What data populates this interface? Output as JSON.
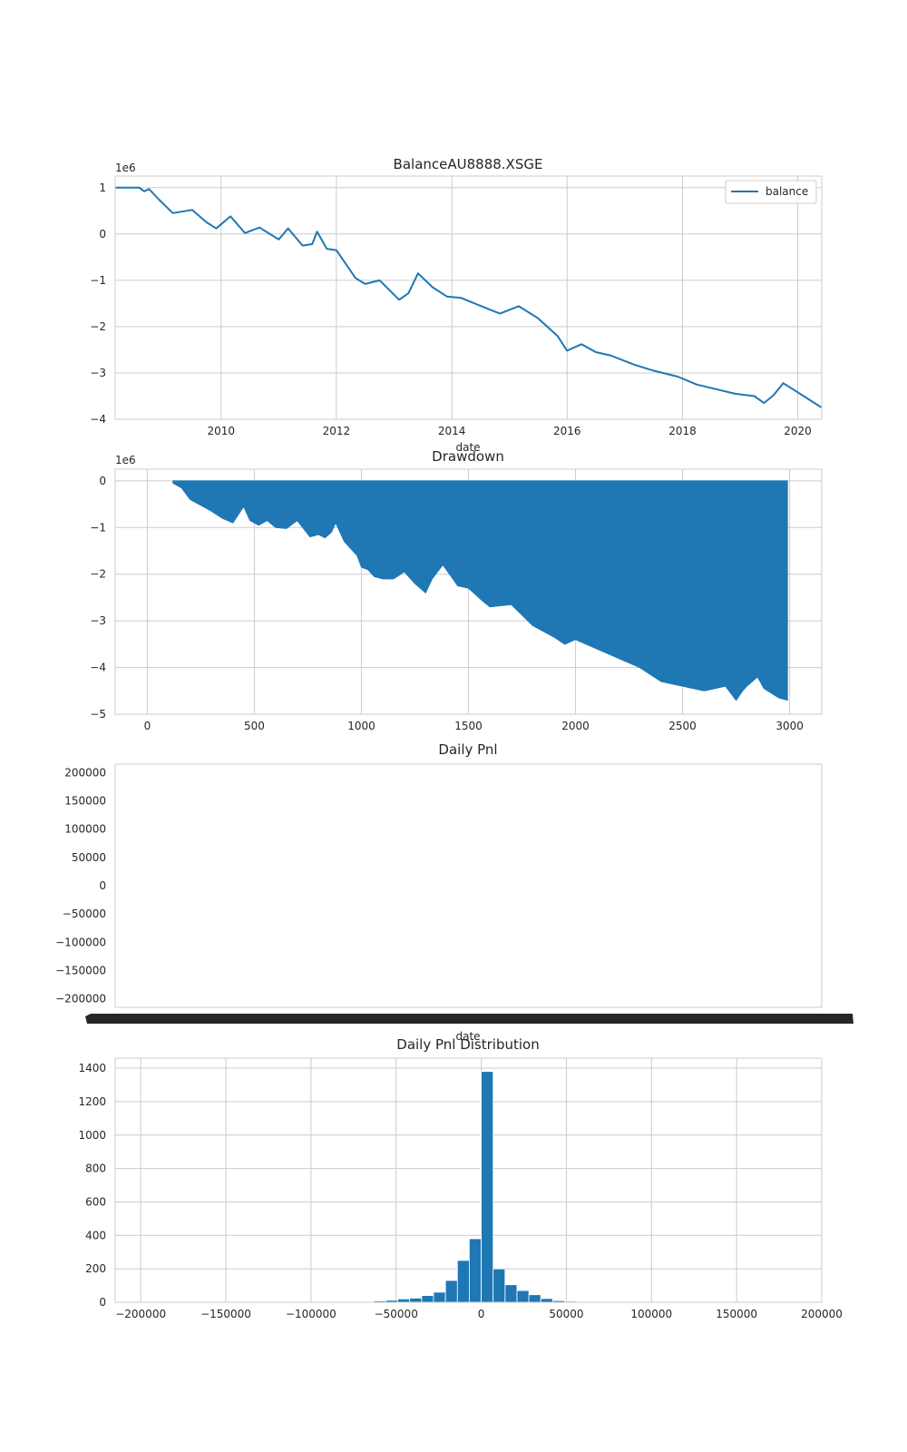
{
  "chart_data": [
    {
      "type": "line",
      "title": "BalanceAU8888.XSGE",
      "xlabel": "date",
      "ylabel": "",
      "y_offset_label": "1e6",
      "xlim": [
        "2008-03-01",
        "2020-06-01"
      ],
      "ylim": [
        -4,
        1.25
      ],
      "x_ticks": [
        "2010",
        "2012",
        "2014",
        "2016",
        "2018",
        "2020"
      ],
      "y_ticks": [
        -4,
        -3,
        -2,
        -1,
        0,
        1
      ],
      "y_tick_labels": [
        "−4",
        "−3",
        "−2",
        "−1",
        "0",
        "1"
      ],
      "grid": true,
      "legend": {
        "position": "top-right",
        "entries": [
          "balance"
        ]
      },
      "series": [
        {
          "name": "balance",
          "color": "#1f77b4",
          "x": [
            "2008-03-01",
            "2008-08-01",
            "2008-09-01",
            "2008-10-01",
            "2008-12-01",
            "2009-03-01",
            "2009-07-01",
            "2009-10-01",
            "2009-12-01",
            "2010-03-01",
            "2010-06-01",
            "2010-09-01",
            "2011-01-01",
            "2011-03-01",
            "2011-06-01",
            "2011-08-01",
            "2011-09-01",
            "2011-11-01",
            "2012-01-01",
            "2012-05-01",
            "2012-07-01",
            "2012-10-01",
            "2013-02-01",
            "2013-04-01",
            "2013-06-01",
            "2013-09-01",
            "2013-12-01",
            "2014-03-01",
            "2014-07-01",
            "2014-11-01",
            "2015-03-01",
            "2015-07-01",
            "2015-11-01",
            "2016-01-01",
            "2016-04-01",
            "2016-07-01",
            "2016-10-01",
            "2017-03-01",
            "2017-07-01",
            "2017-12-01",
            "2018-04-01",
            "2018-08-01",
            "2018-12-01",
            "2019-04-01",
            "2019-06-01",
            "2019-08-01",
            "2019-10-01",
            "2019-12-01",
            "2020-03-01",
            "2020-06-01"
          ],
          "values": [
            1.0,
            1.0,
            0.92,
            0.97,
            0.75,
            0.45,
            0.52,
            0.25,
            0.12,
            0.38,
            0.02,
            0.14,
            -0.12,
            0.12,
            -0.25,
            -0.22,
            0.05,
            -0.32,
            -0.35,
            -0.95,
            -1.08,
            -1.0,
            -1.42,
            -1.28,
            -0.85,
            -1.15,
            -1.35,
            -1.38,
            -1.55,
            -1.72,
            -1.56,
            -1.82,
            -2.2,
            -2.52,
            -2.38,
            -2.55,
            -2.62,
            -2.82,
            -2.95,
            -3.08,
            -3.25,
            -3.35,
            -3.45,
            -3.5,
            -3.65,
            -3.48,
            -3.22,
            -3.35,
            -3.55,
            -3.75
          ]
        }
      ]
    },
    {
      "type": "area",
      "title": "Drawdown",
      "xlabel": "",
      "ylabel": "",
      "y_offset_label": "1e6",
      "xlim": [
        -150,
        3150
      ],
      "ylim": [
        -5,
        0.25
      ],
      "x_ticks": [
        0,
        500,
        1000,
        1500,
        2000,
        2500,
        3000
      ],
      "y_ticks": [
        -5,
        -4,
        -3,
        -2,
        -1,
        0
      ],
      "y_tick_labels": [
        "−5",
        "−4",
        "−3",
        "−2",
        "−1",
        "0"
      ],
      "grid": true,
      "series": [
        {
          "name": "",
          "color": "#1f77b4",
          "x": [
            120,
            160,
            200,
            260,
            300,
            350,
            400,
            450,
            480,
            520,
            560,
            600,
            650,
            700,
            760,
            800,
            830,
            860,
            880,
            920,
            980,
            1000,
            1030,
            1060,
            1100,
            1150,
            1200,
            1250,
            1300,
            1330,
            1380,
            1420,
            1450,
            1500,
            1560,
            1600,
            1700,
            1800,
            1900,
            1950,
            2000,
            2100,
            2200,
            2300,
            2400,
            2500,
            2600,
            2650,
            2700,
            2750,
            2780,
            2800,
            2850,
            2880,
            2950,
            2990
          ],
          "values": [
            -0.05,
            -0.15,
            -0.4,
            -0.55,
            -0.65,
            -0.8,
            -0.9,
            -0.55,
            -0.85,
            -0.95,
            -0.85,
            -1.0,
            -1.02,
            -0.85,
            -1.2,
            -1.15,
            -1.22,
            -1.1,
            -0.9,
            -1.3,
            -1.6,
            -1.85,
            -1.9,
            -2.05,
            -2.1,
            -2.1,
            -1.95,
            -2.2,
            -2.4,
            -2.1,
            -1.8,
            -2.05,
            -2.25,
            -2.3,
            -2.55,
            -2.7,
            -2.65,
            -3.1,
            -3.35,
            -3.5,
            -3.4,
            -3.6,
            -3.8,
            -4.0,
            -4.3,
            -4.4,
            -4.5,
            -4.45,
            -4.4,
            -4.7,
            -4.5,
            -4.4,
            -4.2,
            -4.45,
            -4.65,
            -4.7
          ]
        }
      ]
    },
    {
      "type": "bar",
      "title": "Daily Pnl",
      "xlabel": "date",
      "ylabel": "",
      "ylim": [
        -215000,
        215000
      ],
      "y_ticks": [
        -200000,
        -150000,
        -100000,
        -50000,
        0,
        50000,
        100000,
        150000,
        200000
      ],
      "y_tick_labels": [
        "−200000",
        "−150000",
        "−100000",
        "−50000",
        "0",
        "50000",
        "100000",
        "150000",
        "200000"
      ],
      "grid": false,
      "series": []
    },
    {
      "type": "bar",
      "title": "Daily Pnl Distribution",
      "xlabel": "",
      "ylabel": "",
      "xlim": [
        -215000,
        200000
      ],
      "ylim": [
        0,
        1460
      ],
      "x_ticks": [
        -200000,
        -150000,
        -100000,
        -50000,
        0,
        50000,
        100000,
        150000,
        200000
      ],
      "x_tick_labels": [
        "−200000",
        "−150000",
        "−100000",
        "−50000",
        "0",
        "50000",
        "100000",
        "150000",
        "200000"
      ],
      "y_ticks": [
        0,
        200,
        400,
        600,
        800,
        1000,
        1200,
        1400
      ],
      "grid": true,
      "bin_width": 7000,
      "series": [
        {
          "name": "",
          "color": "#1f77b4",
          "bin_left": [
            -77000,
            -70000,
            -63000,
            -56000,
            -49000,
            -42000,
            -35000,
            -28000,
            -21000,
            -14000,
            -7000,
            0,
            7000,
            14000,
            21000,
            28000,
            35000,
            42000,
            49000,
            56000,
            63000,
            70000
          ],
          "values": [
            2,
            4,
            8,
            12,
            20,
            25,
            40,
            60,
            130,
            250,
            380,
            1380,
            200,
            105,
            70,
            45,
            22,
            10,
            6,
            4,
            3,
            2
          ]
        }
      ]
    }
  ]
}
